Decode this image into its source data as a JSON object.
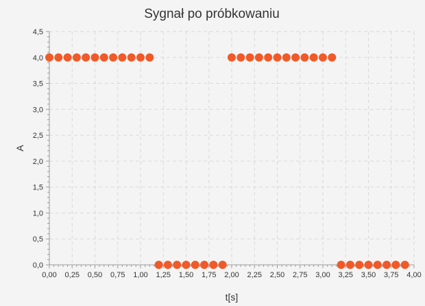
{
  "chart_data": {
    "type": "scatter",
    "title": "Sygnał po próbkowaniu",
    "xlabel": "t[s]",
    "ylabel": "A",
    "xlim": [
      0,
      4
    ],
    "ylim": [
      0,
      4.5
    ],
    "x_tick_labels": [
      "0,00",
      "0,25",
      "0,50",
      "0,75",
      "1,00",
      "1,25",
      "1,50",
      "1,75",
      "2,00",
      "2,25",
      "2,50",
      "2,75",
      "3,00",
      "3,25",
      "3,50",
      "3,75",
      "4,00"
    ],
    "y_tick_labels": [
      "0,0",
      "0,5",
      "1,0",
      "1,5",
      "2,0",
      "2,5",
      "3,0",
      "3,5",
      "4,0",
      "4,5"
    ],
    "x_ticks": [
      0,
      0.25,
      0.5,
      0.75,
      1,
      1.25,
      1.5,
      1.75,
      2,
      2.25,
      2.5,
      2.75,
      3,
      3.25,
      3.5,
      3.75,
      4
    ],
    "y_ticks": [
      0,
      0.5,
      1,
      1.5,
      2,
      2.5,
      3,
      3.5,
      4,
      4.5
    ],
    "grid": true,
    "legend": "none",
    "color": "#f05a28",
    "series": [
      {
        "x": [
          0,
          0.1,
          0.2,
          0.3,
          0.4,
          0.5,
          0.6,
          0.7,
          0.8,
          0.9,
          1.0,
          1.1,
          1.2,
          1.3,
          1.4,
          1.5,
          1.6,
          1.7,
          1.8,
          1.9,
          2.0,
          2.1,
          2.2,
          2.3,
          2.4,
          2.5,
          2.6,
          2.7,
          2.8,
          2.9,
          3.0,
          3.1,
          3.2,
          3.3,
          3.4,
          3.5,
          3.6,
          3.7,
          3.8,
          3.9
        ],
        "values": [
          4,
          4,
          4,
          4,
          4,
          4,
          4,
          4,
          4,
          4,
          4,
          4,
          0,
          0,
          0,
          0,
          0,
          0,
          0,
          0,
          4,
          4,
          4,
          4,
          4,
          4,
          4,
          4,
          4,
          4,
          4,
          4,
          0,
          0,
          0,
          0,
          0,
          0,
          0,
          0
        ]
      }
    ]
  }
}
